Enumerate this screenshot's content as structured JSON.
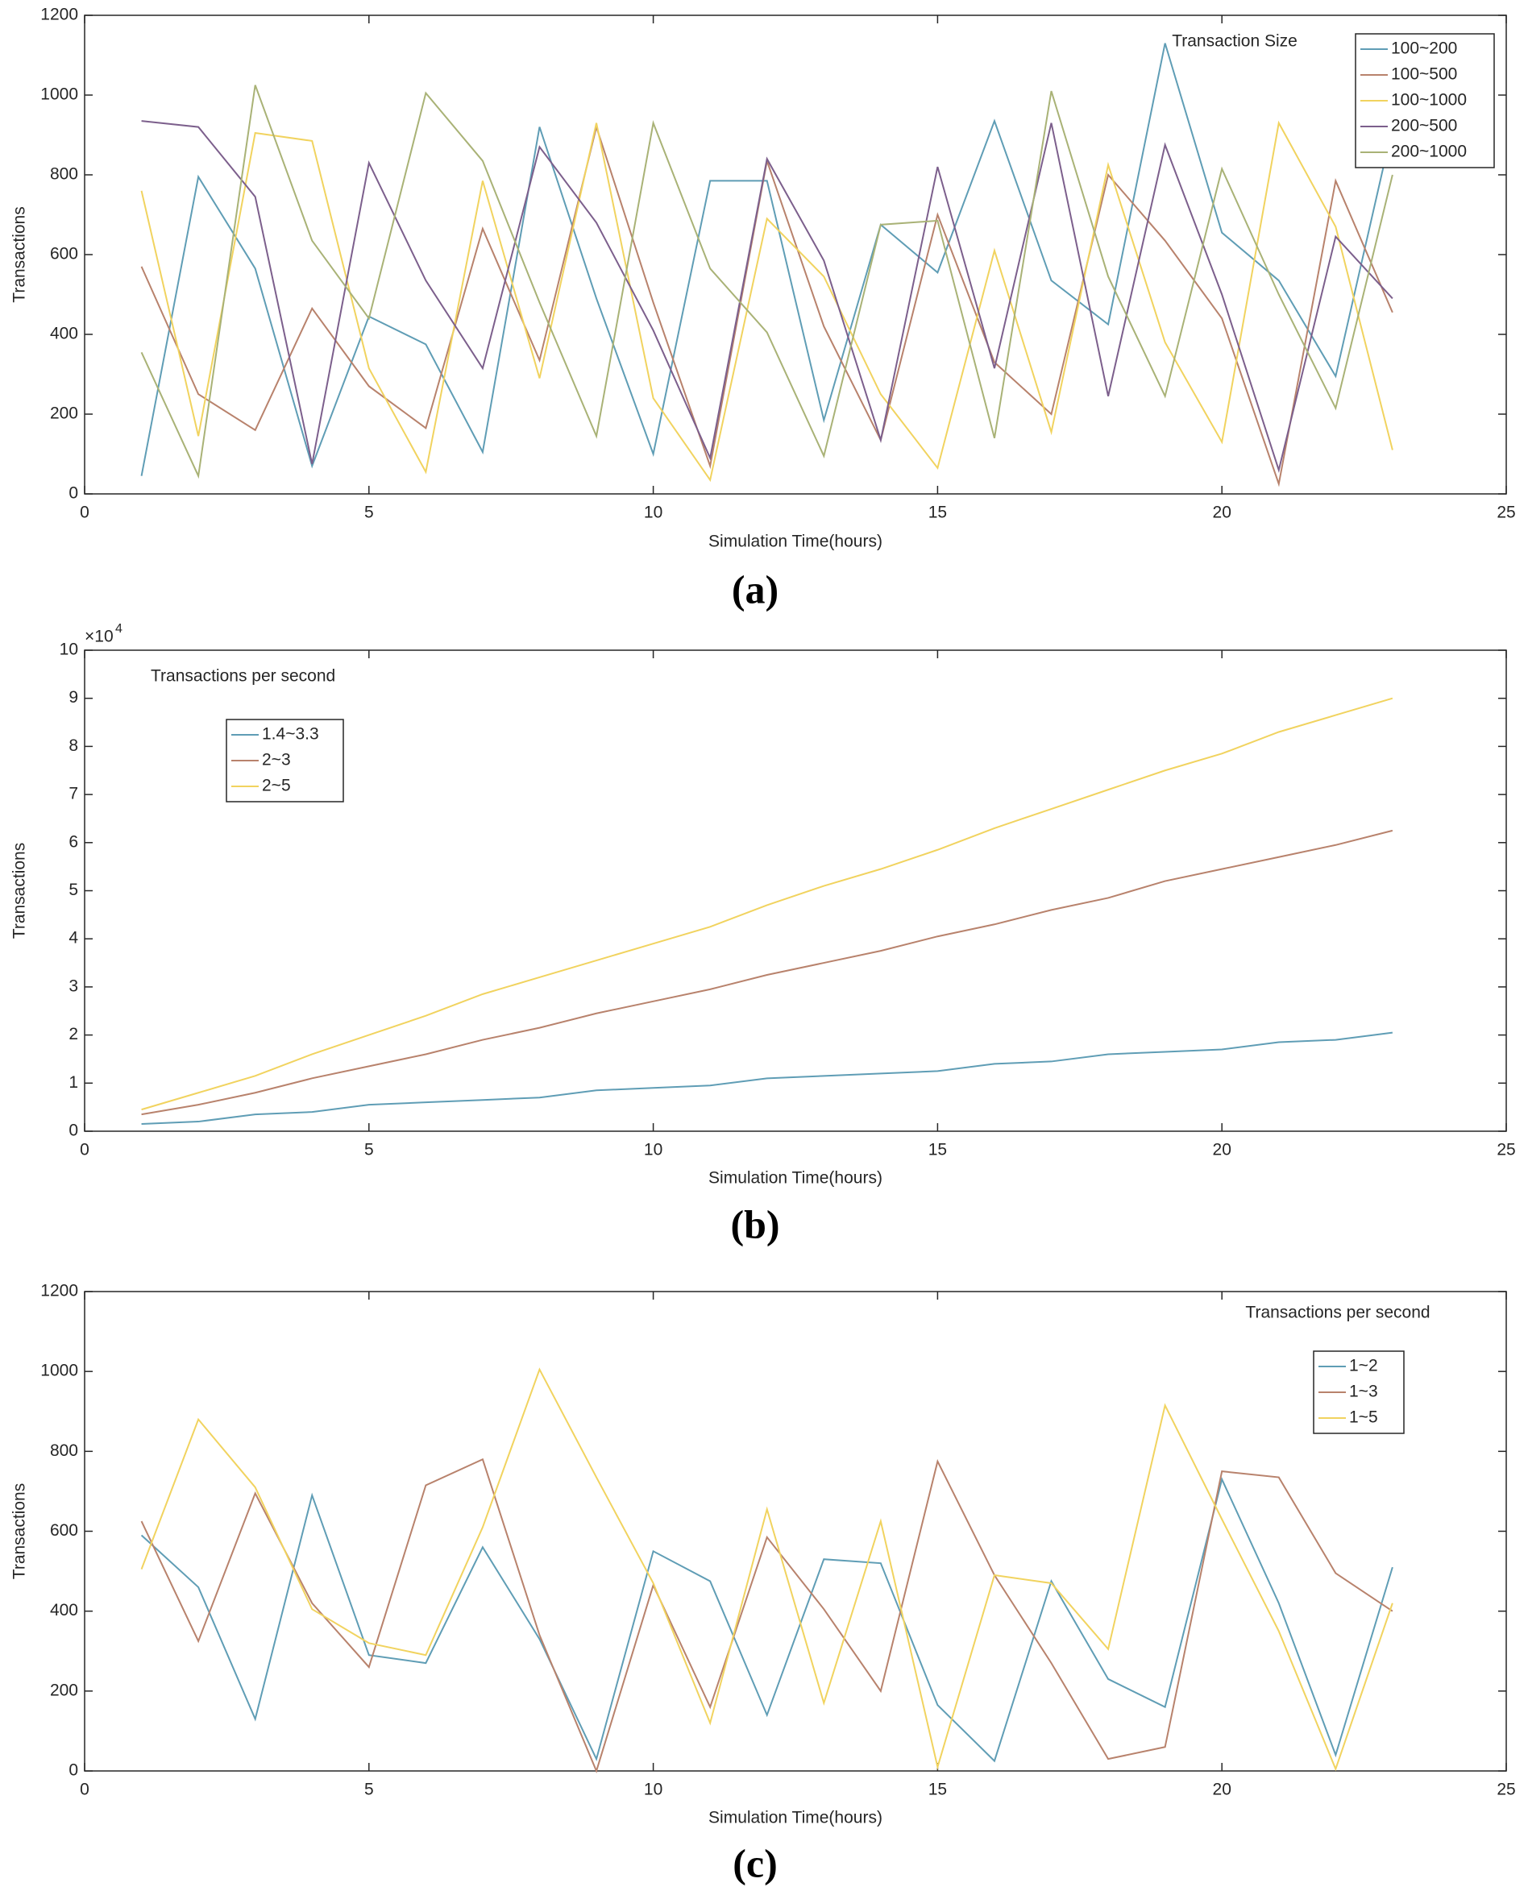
{
  "chart_data": [
    {
      "type": "line",
      "caption": "(a)",
      "xlabel": "Simulation Time(hours)",
      "ylabel": "Transactions",
      "legend_title": "Transaction Size",
      "x": [
        1,
        2,
        3,
        4,
        5,
        6,
        7,
        8,
        9,
        10,
        11,
        12,
        13,
        14,
        15,
        16,
        17,
        18,
        19,
        20,
        21,
        22,
        23
      ],
      "xlim": [
        0,
        25
      ],
      "xticks": [
        0,
        5,
        10,
        15,
        20,
        25
      ],
      "ylim": [
        0,
        1200
      ],
      "yticks": [
        0,
        200,
        400,
        600,
        800,
        1000,
        1200
      ],
      "legend": "upper right",
      "series": [
        {
          "name": "100~200",
          "color": "#5f9db5",
          "values": [
            45,
            795,
            565,
            70,
            445,
            375,
            105,
            920,
            490,
            100,
            785,
            785,
            185,
            675,
            555,
            935,
            535,
            425,
            1130,
            655,
            535,
            295,
            920
          ]
        },
        {
          "name": "100~500",
          "color": "#b8826c",
          "values": [
            570,
            250,
            160,
            465,
            270,
            165,
            665,
            335,
            920,
            480,
            70,
            835,
            420,
            135,
            700,
            330,
            200,
            800,
            635,
            440,
            25,
            785,
            455
          ]
        },
        {
          "name": "100~1000",
          "color": "#f1d35f",
          "values": [
            760,
            145,
            905,
            885,
            315,
            55,
            785,
            290,
            930,
            240,
            35,
            690,
            545,
            250,
            65,
            610,
            155,
            825,
            380,
            130,
            930,
            670,
            110
          ]
        },
        {
          "name": "200~500",
          "color": "#7c5f8c",
          "values": [
            935,
            920,
            745,
            75,
            830,
            535,
            315,
            870,
            680,
            410,
            90,
            840,
            585,
            135,
            820,
            315,
            930,
            245,
            875,
            500,
            60,
            645,
            490
          ]
        },
        {
          "name": "200~1000",
          "color": "#a9b276",
          "values": [
            355,
            45,
            1025,
            635,
            440,
            1005,
            835,
            480,
            145,
            930,
            565,
            405,
            95,
            675,
            685,
            140,
            1010,
            545,
            245,
            815,
            500,
            215,
            800
          ]
        }
      ]
    },
    {
      "type": "line",
      "caption": "(b)",
      "xlabel": "Simulation Time(hours)",
      "ylabel": "Transactions",
      "legend_title": "Transactions per second",
      "y_multiplier": "×10",
      "y_exponent": "4",
      "x": [
        1,
        2,
        3,
        4,
        5,
        6,
        7,
        8,
        9,
        10,
        11,
        12,
        13,
        14,
        15,
        16,
        17,
        18,
        19,
        20,
        21,
        22,
        23
      ],
      "xlim": [
        0,
        25
      ],
      "xticks": [
        0,
        5,
        10,
        15,
        20,
        25
      ],
      "ylim": [
        0,
        10
      ],
      "yticks": [
        0,
        1,
        2,
        3,
        4,
        5,
        6,
        7,
        8,
        9,
        10
      ],
      "legend": "upper left",
      "series": [
        {
          "name": "1.4~3.3",
          "color": "#5f9db5",
          "values": [
            0.15,
            0.2,
            0.35,
            0.4,
            0.55,
            0.6,
            0.65,
            0.7,
            0.85,
            0.9,
            0.95,
            1.1,
            1.15,
            1.2,
            1.25,
            1.4,
            1.45,
            1.6,
            1.65,
            1.7,
            1.85,
            1.9,
            2.05
          ]
        },
        {
          "name": "2~3",
          "color": "#b8826c",
          "values": [
            0.35,
            0.55,
            0.8,
            1.1,
            1.35,
            1.6,
            1.9,
            2.15,
            2.45,
            2.7,
            2.95,
            3.25,
            3.5,
            3.75,
            4.05,
            4.3,
            4.6,
            4.85,
            5.2,
            5.45,
            5.7,
            5.95,
            6.25
          ]
        },
        {
          "name": "2~5",
          "color": "#f1d35f",
          "values": [
            0.45,
            0.8,
            1.15,
            1.6,
            2.0,
            2.4,
            2.85,
            3.2,
            3.55,
            3.9,
            4.25,
            4.7,
            5.1,
            5.45,
            5.85,
            6.3,
            6.7,
            7.1,
            7.5,
            7.85,
            8.3,
            8.65,
            9.0
          ]
        }
      ]
    },
    {
      "type": "line",
      "caption": "(c)",
      "xlabel": "Simulation Time(hours)",
      "ylabel": "Transactions",
      "legend_title": "Transactions per second",
      "x": [
        1,
        2,
        3,
        4,
        5,
        6,
        7,
        8,
        9,
        10,
        11,
        12,
        13,
        14,
        15,
        16,
        17,
        18,
        19,
        20,
        21,
        22,
        23
      ],
      "xlim": [
        0,
        25
      ],
      "xticks": [
        0,
        5,
        10,
        15,
        20,
        25
      ],
      "ylim": [
        0,
        1200
      ],
      "yticks": [
        0,
        200,
        400,
        600,
        800,
        1000,
        1200
      ],
      "legend": "upper right",
      "series": [
        {
          "name": "1~2",
          "color": "#5f9db5",
          "values": [
            590,
            460,
            130,
            690,
            290,
            270,
            560,
            330,
            30,
            550,
            475,
            140,
            530,
            520,
            165,
            25,
            475,
            230,
            160,
            730,
            420,
            40,
            510
          ]
        },
        {
          "name": "1~3",
          "color": "#b8826c",
          "values": [
            625,
            325,
            695,
            420,
            260,
            715,
            780,
            340,
            0,
            465,
            160,
            585,
            405,
            200,
            775,
            490,
            270,
            30,
            60,
            750,
            735,
            495,
            400
          ]
        },
        {
          "name": "1~5",
          "color": "#f1d35f",
          "values": [
            505,
            880,
            710,
            405,
            320,
            290,
            610,
            1005,
            735,
            470,
            120,
            655,
            170,
            625,
            10,
            490,
            470,
            305,
            915,
            630,
            350,
            5,
            420
          ]
        }
      ]
    }
  ]
}
